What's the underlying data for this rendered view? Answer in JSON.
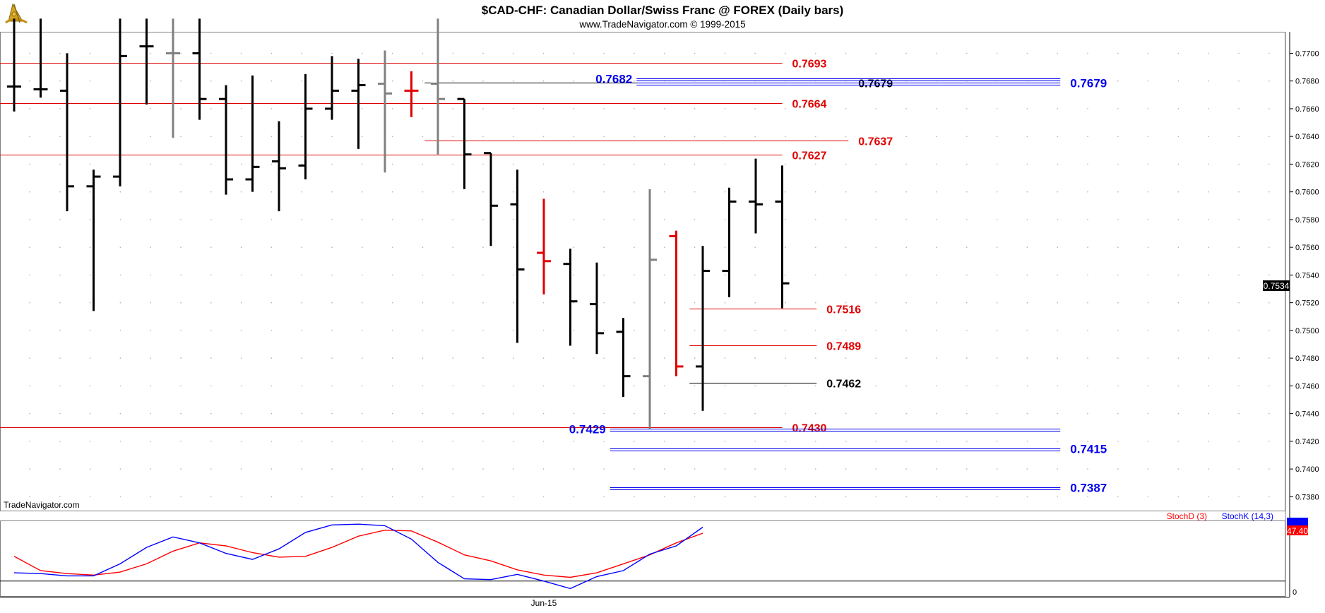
{
  "header": {
    "title": "$CAD-CHF:  Canadian Dollar/Swiss Franc @ FOREX  (Daily bars)",
    "subtitle": "www.TradeNavigator.com © 1999-2015"
  },
  "watermark": "TradeNavigator.com",
  "logo_icon": "sextant-logo-icon",
  "colors": {
    "up_bar": "#000000",
    "neutral_bar": "#808080",
    "signal_bar": "#e00000",
    "level_red": "#e00000",
    "level_blue": "#0000ee",
    "level_black": "#000000",
    "stoch_d": "#ff0000",
    "stoch_k": "#0000ff",
    "grid": "#b0b0b0"
  },
  "chart_data": [
    {
      "type": "ohlc",
      "title": "$CAD-CHF:  Canadian Dollar/Swiss Franc @ FOREX  (Daily bars)",
      "ylim": [
        0.737,
        0.7715
      ],
      "y_ticks": [
        "0.7700",
        "0.7680",
        "0.7660",
        "0.7640",
        "0.7620",
        "0.7600",
        "0.7580",
        "0.7560",
        "0.7540",
        "0.7520",
        "0.7500",
        "0.7480",
        "0.7460",
        "0.7440",
        "0.7420",
        "0.7400",
        "0.7380"
      ],
      "x_tick_labels": [
        {
          "label": "Jun-15",
          "bar_index": 20
        }
      ],
      "last_price": "0.7534",
      "bars": [
        {
          "o": 0.7676,
          "h": 0.7725,
          "l": 0.7658,
          "c": 0.7676,
          "color": "black"
        },
        {
          "o": 0.7674,
          "h": 0.7725,
          "l": 0.7668,
          "c": 0.7674,
          "color": "black"
        },
        {
          "o": 0.7673,
          "h": 0.77,
          "l": 0.7586,
          "c": 0.7604,
          "color": "black"
        },
        {
          "o": 0.7604,
          "h": 0.7616,
          "l": 0.7514,
          "c": 0.7611,
          "color": "black"
        },
        {
          "o": 0.7611,
          "h": 0.7725,
          "l": 0.7604,
          "c": 0.7698,
          "color": "black"
        },
        {
          "o": 0.7705,
          "h": 0.7725,
          "l": 0.7663,
          "c": 0.7705,
          "color": "black"
        },
        {
          "o": 0.77,
          "h": 0.7725,
          "l": 0.7639,
          "c": 0.77,
          "color": "gray"
        },
        {
          "o": 0.77,
          "h": 0.7725,
          "l": 0.7652,
          "c": 0.7667,
          "color": "black"
        },
        {
          "o": 0.7667,
          "h": 0.7677,
          "l": 0.7598,
          "c": 0.7609,
          "color": "black"
        },
        {
          "o": 0.7609,
          "h": 0.7684,
          "l": 0.76,
          "c": 0.7618,
          "color": "black"
        },
        {
          "o": 0.7622,
          "h": 0.7651,
          "l": 0.7586,
          "c": 0.7617,
          "color": "black"
        },
        {
          "o": 0.7619,
          "h": 0.7685,
          "l": 0.7609,
          "c": 0.766,
          "color": "black"
        },
        {
          "o": 0.766,
          "h": 0.7698,
          "l": 0.7652,
          "c": 0.7673,
          "color": "black"
        },
        {
          "o": 0.7673,
          "h": 0.7696,
          "l": 0.7631,
          "c": 0.7677,
          "color": "black"
        },
        {
          "o": 0.7678,
          "h": 0.7702,
          "l": 0.7614,
          "c": 0.7671,
          "color": "gray"
        },
        {
          "o": 0.7673,
          "h": 0.7687,
          "l": 0.7654,
          "c": 0.7673,
          "color": "red"
        },
        {
          "o": 0.7678,
          "h": 0.7725,
          "l": 0.7627,
          "c": 0.7667,
          "color": "gray"
        },
        {
          "o": 0.7667,
          "h": 0.7667,
          "l": 0.7602,
          "c": 0.7627,
          "color": "black"
        },
        {
          "o": 0.7628,
          "h": 0.7628,
          "l": 0.7561,
          "c": 0.759,
          "color": "black"
        },
        {
          "o": 0.7591,
          "h": 0.7616,
          "l": 0.7491,
          "c": 0.7544,
          "color": "black"
        },
        {
          "o": 0.7556,
          "h": 0.7595,
          "l": 0.7526,
          "c": 0.755,
          "color": "red"
        },
        {
          "o": 0.7548,
          "h": 0.7559,
          "l": 0.7489,
          "c": 0.7521,
          "color": "black"
        },
        {
          "o": 0.7519,
          "h": 0.7549,
          "l": 0.7483,
          "c": 0.7498,
          "color": "black"
        },
        {
          "o": 0.7499,
          "h": 0.7509,
          "l": 0.7452,
          "c": 0.7467,
          "color": "black"
        },
        {
          "o": 0.7467,
          "h": 0.7602,
          "l": 0.7429,
          "c": 0.7551,
          "color": "gray"
        },
        {
          "o": 0.7568,
          "h": 0.7572,
          "l": 0.7467,
          "c": 0.7474,
          "color": "red"
        },
        {
          "o": 0.7474,
          "h": 0.7561,
          "l": 0.7442,
          "c": 0.7543,
          "color": "black"
        },
        {
          "o": 0.7543,
          "h": 0.7603,
          "l": 0.7524,
          "c": 0.7593,
          "color": "black"
        },
        {
          "o": 0.7593,
          "h": 0.7624,
          "l": 0.757,
          "c": 0.7591,
          "color": "black"
        },
        {
          "o": 0.7593,
          "h": 0.7619,
          "l": 0.7516,
          "c": 0.7534,
          "color": "black"
        }
      ],
      "levels": [
        {
          "label": "0.7693",
          "value": 0.7693,
          "color": "red",
          "x0": 0,
          "x1": 29,
          "label_anchor": "right"
        },
        {
          "label": "0.7664",
          "value": 0.7664,
          "color": "red",
          "x0": 0,
          "x1": 29,
          "label_anchor": "right"
        },
        {
          "label": "0.7627",
          "value": 0.7627,
          "color": "red",
          "x0": 0,
          "x1": 29,
          "label_anchor": "right"
        },
        {
          "label": "0.7430",
          "value": 0.743,
          "color": "red",
          "x0": 0,
          "x1": 29,
          "label_anchor": "right"
        },
        {
          "label": "0.7637",
          "value": 0.7637,
          "color": "red",
          "x0": 16,
          "x1": 31.5,
          "label_anchor": "right"
        },
        {
          "label": "0.7679",
          "value": 0.7679,
          "color": "black",
          "x0": 16,
          "x1": 31.5,
          "label_anchor": "right"
        },
        {
          "label": "0.7682",
          "value": 0.7682,
          "color": "blue",
          "x0": 24,
          "x1": 39.5,
          "label_anchor": "left"
        },
        {
          "label": "0.7679",
          "value": 0.7679,
          "color": "blue",
          "x0": 24,
          "x1": 39.5,
          "label_anchor": "right"
        },
        {
          "label": "0.7429",
          "value": 0.7429,
          "color": "blue",
          "x0": 23,
          "x1": 39.5,
          "label_anchor": "left"
        },
        {
          "label": "0.7415",
          "value": 0.7415,
          "color": "blue",
          "x0": 23,
          "x1": 39.5,
          "label_anchor": "right"
        },
        {
          "label": "0.7387",
          "value": 0.7387,
          "color": "blue",
          "x0": 23,
          "x1": 39.5,
          "label_anchor": "right"
        },
        {
          "label": "0.7516",
          "value": 0.7516,
          "color": "red",
          "x0": 26,
          "x1": 30.3,
          "label_anchor": "right"
        },
        {
          "label": "0.7489",
          "value": 0.7489,
          "color": "red",
          "x0": 26,
          "x1": 30.3,
          "label_anchor": "right"
        },
        {
          "label": "0.7462",
          "value": 0.7462,
          "color": "black",
          "x0": 26,
          "x1": 30.3,
          "label_anchor": "right"
        }
      ]
    },
    {
      "type": "line",
      "title": "",
      "ylim": [
        0,
        100
      ],
      "y_ticks": [
        "0"
      ],
      "reference_level": 20,
      "series": [
        {
          "name": "StochD (3)",
          "color": "#ff0000",
          "values": [
            53,
            34,
            30,
            28,
            32,
            43,
            60,
            71,
            67,
            58,
            52,
            53,
            65,
            80,
            88,
            87,
            72,
            55,
            47,
            35,
            28,
            25,
            31,
            43,
            55,
            71,
            84
          ]
        },
        {
          "name": "StochK (14,3)",
          "color": "#0000ff",
          "values": [
            31,
            30,
            27,
            27,
            43,
            65,
            79,
            71,
            57,
            49,
            63,
            85,
            95,
            96,
            94,
            76,
            45,
            23,
            22,
            29,
            20,
            10,
            26,
            34,
            56,
            67,
            92
          ]
        }
      ],
      "last_values": [
        "47.40"
      ]
    }
  ]
}
